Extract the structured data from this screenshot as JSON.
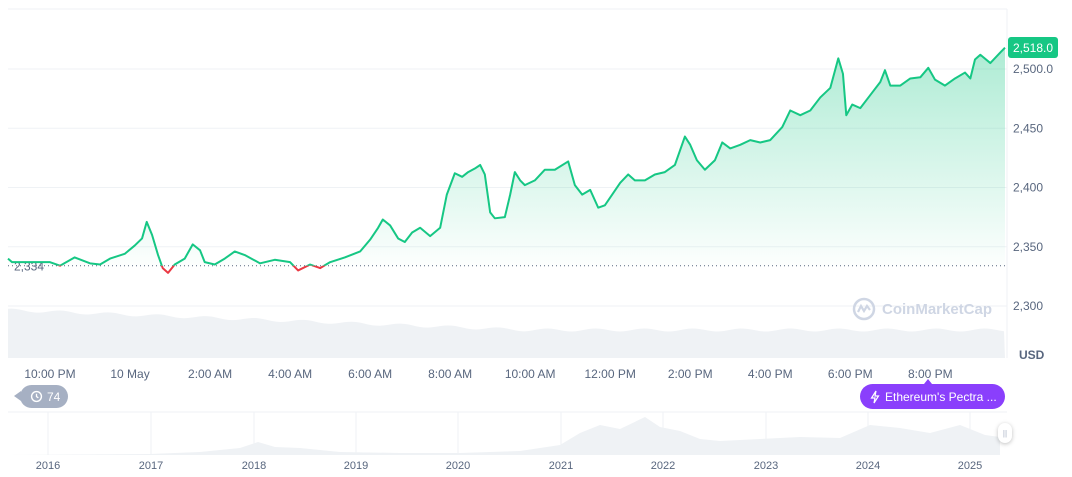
{
  "chart_data": {
    "type": "area",
    "title": "",
    "xlabel": "",
    "ylabel": "",
    "currency": "USD",
    "ylim": [
      2280,
      2530
    ],
    "yticks": [
      "2,300",
      "2,350",
      "2,400",
      "2,450",
      "2,500.0"
    ],
    "ytick_values": [
      2300,
      2350,
      2400,
      2450,
      2500
    ],
    "xlim": [
      "2025-05-09T20:57",
      "2025-05-10T21:52"
    ],
    "xticks": [
      {
        "t": "2025-05-09T22:00",
        "label": "10:00 PM"
      },
      {
        "t": "2025-05-10T00:00",
        "label": "10 May"
      },
      {
        "t": "2025-05-10T02:00",
        "label": "2:00 AM"
      },
      {
        "t": "2025-05-10T04:00",
        "label": "4:00 AM"
      },
      {
        "t": "2025-05-10T06:00",
        "label": "6:00 AM"
      },
      {
        "t": "2025-05-10T08:00",
        "label": "8:00 AM"
      },
      {
        "t": "2025-05-10T10:00",
        "label": "10:00 AM"
      },
      {
        "t": "2025-05-10T12:00",
        "label": "12:00 PM"
      },
      {
        "t": "2025-05-10T14:00",
        "label": "2:00 PM"
      },
      {
        "t": "2025-05-10T16:00",
        "label": "4:00 PM"
      },
      {
        "t": "2025-05-10T18:00",
        "label": "6:00 PM"
      },
      {
        "t": "2025-05-10T20:00",
        "label": "8:00 PM"
      }
    ],
    "baseline": {
      "value": 2334,
      "label": "2,334"
    },
    "current": {
      "value": 2518.0,
      "label": "2,518.0"
    },
    "grid": true,
    "colors": {
      "up": "#16c784",
      "down": "#ea3943",
      "grid": "#eff2f5",
      "volume": "#eff2f5"
    },
    "series": [
      {
        "points": [
          [
            "2025-05-09T20:57",
            2340
          ],
          [
            "2025-05-09T21:03",
            2337
          ],
          [
            "2025-05-09T22:00",
            2337
          ],
          [
            "2025-05-09T22:15",
            2334
          ],
          [
            "2025-05-09T22:37",
            2341
          ],
          [
            "2025-05-09T23:00",
            2336
          ],
          [
            "2025-05-09T23:15",
            2335
          ],
          [
            "2025-05-09T23:30",
            2340
          ],
          [
            "2025-05-09T23:52",
            2344
          ],
          [
            "2025-05-10T00:07",
            2351
          ],
          [
            "2025-05-10T00:18",
            2357
          ],
          [
            "2025-05-10T00:25",
            2371
          ],
          [
            "2025-05-10T00:33",
            2360
          ],
          [
            "2025-05-10T00:42",
            2343
          ],
          [
            "2025-05-10T00:49",
            2332
          ],
          [
            "2025-05-10T00:57",
            2328
          ],
          [
            "2025-05-10T01:07",
            2335
          ],
          [
            "2025-05-10T01:22",
            2340
          ],
          [
            "2025-05-10T01:34",
            2352
          ],
          [
            "2025-05-10T01:45",
            2347
          ],
          [
            "2025-05-10T01:52",
            2337
          ],
          [
            "2025-05-10T02:07",
            2335
          ],
          [
            "2025-05-10T02:22",
            2340
          ],
          [
            "2025-05-10T02:37",
            2346
          ],
          [
            "2025-05-10T02:52",
            2343
          ],
          [
            "2025-05-10T03:15",
            2336
          ],
          [
            "2025-05-10T03:37",
            2339
          ],
          [
            "2025-05-10T04:00",
            2337
          ],
          [
            "2025-05-10T04:12",
            2330
          ],
          [
            "2025-05-10T04:30",
            2335
          ],
          [
            "2025-05-10T04:45",
            2332
          ],
          [
            "2025-05-10T05:00",
            2337
          ],
          [
            "2025-05-10T05:22",
            2341
          ],
          [
            "2025-05-10T05:45",
            2346
          ],
          [
            "2025-05-10T06:00",
            2356
          ],
          [
            "2025-05-10T06:12",
            2366
          ],
          [
            "2025-05-10T06:19",
            2373
          ],
          [
            "2025-05-10T06:30",
            2368
          ],
          [
            "2025-05-10T06:42",
            2357
          ],
          [
            "2025-05-10T06:52",
            2354
          ],
          [
            "2025-05-10T07:03",
            2362
          ],
          [
            "2025-05-10T07:15",
            2366
          ],
          [
            "2025-05-10T07:30",
            2359
          ],
          [
            "2025-05-10T07:45",
            2366
          ],
          [
            "2025-05-10T07:55",
            2394
          ],
          [
            "2025-05-10T08:07",
            2412
          ],
          [
            "2025-05-10T08:18",
            2409
          ],
          [
            "2025-05-10T08:27",
            2413
          ],
          [
            "2025-05-10T08:37",
            2416
          ],
          [
            "2025-05-10T08:45",
            2419
          ],
          [
            "2025-05-10T08:52",
            2411
          ],
          [
            "2025-05-10T09:00",
            2379
          ],
          [
            "2025-05-10T09:07",
            2374
          ],
          [
            "2025-05-10T09:22",
            2375
          ],
          [
            "2025-05-10T09:30",
            2394
          ],
          [
            "2025-05-10T09:37",
            2413
          ],
          [
            "2025-05-10T09:45",
            2406
          ],
          [
            "2025-05-10T09:52",
            2402
          ],
          [
            "2025-05-10T10:07",
            2406
          ],
          [
            "2025-05-10T10:22",
            2415
          ],
          [
            "2025-05-10T10:37",
            2415
          ],
          [
            "2025-05-10T10:57",
            2422
          ],
          [
            "2025-05-10T11:07",
            2402
          ],
          [
            "2025-05-10T11:18",
            2394
          ],
          [
            "2025-05-10T11:30",
            2398
          ],
          [
            "2025-05-10T11:42",
            2383
          ],
          [
            "2025-05-10T11:52",
            2385
          ],
          [
            "2025-05-10T12:03",
            2394
          ],
          [
            "2025-05-10T12:15",
            2404
          ],
          [
            "2025-05-10T12:27",
            2411
          ],
          [
            "2025-05-10T12:37",
            2406
          ],
          [
            "2025-05-10T12:52",
            2406
          ],
          [
            "2025-05-10T13:07",
            2411
          ],
          [
            "2025-05-10T13:22",
            2413
          ],
          [
            "2025-05-10T13:37",
            2419
          ],
          [
            "2025-05-10T13:52",
            2443
          ],
          [
            "2025-05-10T14:00",
            2436
          ],
          [
            "2025-05-10T14:10",
            2423
          ],
          [
            "2025-05-10T14:22",
            2415
          ],
          [
            "2025-05-10T14:37",
            2423
          ],
          [
            "2025-05-10T14:48",
            2438
          ],
          [
            "2025-05-10T15:00",
            2433
          ],
          [
            "2025-05-10T15:15",
            2436
          ],
          [
            "2025-05-10T15:30",
            2440
          ],
          [
            "2025-05-10T15:45",
            2438
          ],
          [
            "2025-05-10T16:00",
            2440
          ],
          [
            "2025-05-10T16:18",
            2451
          ],
          [
            "2025-05-10T16:30",
            2465
          ],
          [
            "2025-05-10T16:45",
            2461
          ],
          [
            "2025-05-10T17:00",
            2465
          ],
          [
            "2025-05-10T17:15",
            2476
          ],
          [
            "2025-05-10T17:30",
            2484
          ],
          [
            "2025-05-10T17:42",
            2509
          ],
          [
            "2025-05-10T17:49",
            2496
          ],
          [
            "2025-05-10T17:54",
            2461
          ],
          [
            "2025-05-10T18:03",
            2470
          ],
          [
            "2025-05-10T18:15",
            2467
          ],
          [
            "2025-05-10T18:30",
            2478
          ],
          [
            "2025-05-10T18:45",
            2489
          ],
          [
            "2025-05-10T18:52",
            2499
          ],
          [
            "2025-05-10T19:00",
            2486
          ],
          [
            "2025-05-10T19:15",
            2486
          ],
          [
            "2025-05-10T19:30",
            2492
          ],
          [
            "2025-05-10T19:45",
            2493
          ],
          [
            "2025-05-10T19:57",
            2501
          ],
          [
            "2025-05-10T20:07",
            2491
          ],
          [
            "2025-05-10T20:22",
            2486
          ],
          [
            "2025-05-10T20:37",
            2492
          ],
          [
            "2025-05-10T20:52",
            2497
          ],
          [
            "2025-05-10T21:00",
            2492
          ],
          [
            "2025-05-10T21:07",
            2508
          ],
          [
            "2025-05-10T21:15",
            2512
          ],
          [
            "2025-05-10T21:30",
            2505
          ],
          [
            "2025-05-10T21:45",
            2514
          ],
          [
            "2025-05-10T21:52",
            2518
          ]
        ]
      }
    ],
    "overview": {
      "years": [
        "2016",
        "2017",
        "2018",
        "2019",
        "2020",
        "2021",
        "2022",
        "2023",
        "2024",
        "2025"
      ]
    }
  },
  "badges": {
    "history_count": "74",
    "history_icon": "history-icon",
    "event_label": "Ethereum's Pectra ...",
    "event_icon": "lightning-icon"
  },
  "watermark": "CoinMarketCap"
}
